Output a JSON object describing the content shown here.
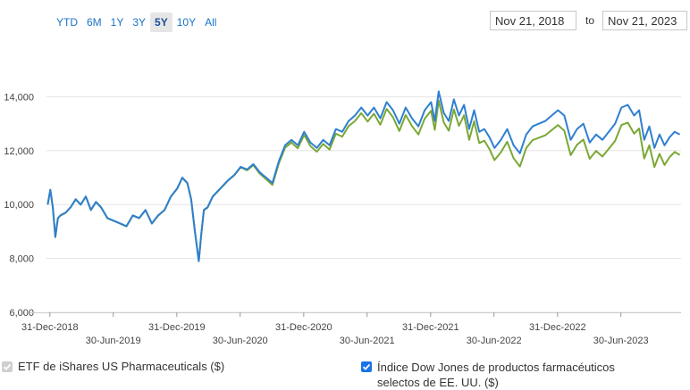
{
  "range_buttons": [
    "YTD",
    "6M",
    "1Y",
    "3Y",
    "5Y",
    "10Y",
    "All"
  ],
  "active_range": "5Y",
  "date_from": "Nov 21, 2018",
  "date_sep": "to",
  "date_to": "Nov 21, 2023",
  "legend": {
    "etf_label": "ETF de iShares US Pharmaceuticals ($)",
    "index_label_line1": "Índice Dow Jones de productos farmacéuticos",
    "index_label_line2": "selectos de EE. UU. ($)"
  },
  "colors": {
    "etf": "#2f7fd1",
    "index": "#7aa834",
    "grid": "#e3e3e3",
    "axis": "#cccccc"
  },
  "chart_data": {
    "type": "line",
    "title": "",
    "xlabel": "",
    "ylabel": "",
    "ylim": [
      6000,
      16000
    ],
    "yticks": [
      6000,
      8000,
      10000,
      12000,
      14000
    ],
    "ytick_labels": [
      "6,000",
      "8,000",
      "10,000",
      "12,000",
      "14,000"
    ],
    "xlim_years": [
      2018.97,
      2023.97
    ],
    "xticks_upper": [
      {
        "t": 2018.997,
        "label": "31-Dec-2018"
      },
      {
        "t": 2019.997,
        "label": "31-Dec-2019"
      },
      {
        "t": 2020.997,
        "label": "31-Dec-2020"
      },
      {
        "t": 2021.997,
        "label": "31-Dec-2021"
      },
      {
        "t": 2022.997,
        "label": "31-Dec-2022"
      }
    ],
    "xticks_lower": [
      {
        "t": 2019.496,
        "label": "30-Jun-2019"
      },
      {
        "t": 2020.496,
        "label": "30-Jun-2020"
      },
      {
        "t": 2021.496,
        "label": "30-Jun-2021"
      },
      {
        "t": 2022.496,
        "label": "30-Jun-2022"
      },
      {
        "t": 2023.496,
        "label": "30-Jun-2023"
      }
    ],
    "series": [
      {
        "name": "ETF de iShares US Pharmaceuticals ($)",
        "x": [
          2018.98,
          2019.0,
          2019.02,
          2019.04,
          2019.06,
          2019.08,
          2019.12,
          2019.16,
          2019.2,
          2019.24,
          2019.28,
          2019.32,
          2019.36,
          2019.4,
          2019.45,
          2019.5,
          2019.55,
          2019.6,
          2019.65,
          2019.7,
          2019.75,
          2019.8,
          2019.85,
          2019.9,
          2019.95,
          2020.0,
          2020.04,
          2020.08,
          2020.11,
          2020.14,
          2020.17,
          2020.19,
          2020.21,
          2020.24,
          2020.28,
          2020.32,
          2020.36,
          2020.4,
          2020.45,
          2020.5,
          2020.55,
          2020.6,
          2020.65,
          2020.7,
          2020.75,
          2020.8,
          2020.85,
          2020.9,
          2020.95,
          2021.0,
          2021.05,
          2021.1,
          2021.15,
          2021.2,
          2021.25,
          2021.3,
          2021.35,
          2021.4,
          2021.45,
          2021.5,
          2021.55,
          2021.6,
          2021.65,
          2021.7,
          2021.75,
          2021.8,
          2021.85,
          2021.9,
          2021.95,
          2022.0,
          2022.03,
          2022.06,
          2022.1,
          2022.14,
          2022.18,
          2022.22,
          2022.26,
          2022.3,
          2022.34,
          2022.38,
          2022.42,
          2022.46,
          2022.5,
          2022.55,
          2022.6,
          2022.65,
          2022.7,
          2022.75,
          2022.8,
          2022.85,
          2022.9,
          2022.95,
          2023.0,
          2023.05,
          2023.1,
          2023.15,
          2023.2,
          2023.25,
          2023.3,
          2023.35,
          2023.4,
          2023.45,
          2023.5,
          2023.55,
          2023.6,
          2023.64,
          2023.68,
          2023.72,
          2023.76,
          2023.8,
          2023.84,
          2023.88,
          2023.92,
          2023.96
        ],
        "y": [
          10000,
          10550,
          9900,
          8800,
          9500,
          9600,
          9700,
          9900,
          10200,
          10000,
          10300,
          9800,
          10100,
          9900,
          9500,
          9400,
          9300,
          9200,
          9600,
          9500,
          9800,
          9300,
          9600,
          9800,
          10300,
          10600,
          11000,
          10800,
          10200,
          9000,
          7900,
          8900,
          9800,
          9900,
          10300,
          10500,
          10700,
          10900,
          11100,
          11400,
          11300,
          11500,
          11200,
          11000,
          10800,
          11600,
          12200,
          12400,
          12200,
          12700,
          12300,
          12100,
          12400,
          12200,
          12800,
          12700,
          13100,
          13300,
          13600,
          13300,
          13600,
          13200,
          13800,
          13500,
          13000,
          13600,
          13200,
          12900,
          13500,
          13800,
          13100,
          14200,
          13400,
          13100,
          13900,
          13300,
          13700,
          12800,
          13500,
          12700,
          12800,
          12500,
          12100,
          12400,
          12800,
          12200,
          11900,
          12600,
          12900,
          13000,
          13100,
          13300,
          13500,
          13300,
          12400,
          12800,
          13000,
          12300,
          12600,
          12400,
          12700,
          13000,
          13600,
          13700,
          13300,
          13500,
          12400,
          12900,
          12100,
          12600,
          12200,
          12500,
          12700,
          12600
        ]
      },
      {
        "name": "Índice Dow Jones de productos farmacéuticos selectos de EE. UU. ($)",
        "x": [
          2018.98,
          2019.0,
          2019.02,
          2019.04,
          2019.06,
          2019.08,
          2019.12,
          2019.16,
          2019.2,
          2019.24,
          2019.28,
          2019.32,
          2019.36,
          2019.4,
          2019.45,
          2019.5,
          2019.55,
          2019.6,
          2019.65,
          2019.7,
          2019.75,
          2019.8,
          2019.85,
          2019.9,
          2019.95,
          2020.0,
          2020.04,
          2020.08,
          2020.11,
          2020.14,
          2020.17,
          2020.19,
          2020.21,
          2020.24,
          2020.28,
          2020.32,
          2020.36,
          2020.4,
          2020.45,
          2020.5,
          2020.55,
          2020.6,
          2020.65,
          2020.7,
          2020.75,
          2020.8,
          2020.85,
          2020.9,
          2020.95,
          2021.0,
          2021.05,
          2021.1,
          2021.15,
          2021.2,
          2021.25,
          2021.3,
          2021.35,
          2021.4,
          2021.45,
          2021.5,
          2021.55,
          2021.6,
          2021.65,
          2021.7,
          2021.75,
          2021.8,
          2021.85,
          2021.9,
          2021.95,
          2022.0,
          2022.03,
          2022.06,
          2022.1,
          2022.14,
          2022.18,
          2022.22,
          2022.26,
          2022.3,
          2022.34,
          2022.38,
          2022.42,
          2022.46,
          2022.5,
          2022.55,
          2022.6,
          2022.65,
          2022.7,
          2022.75,
          2022.8,
          2022.85,
          2022.9,
          2022.95,
          2023.0,
          2023.05,
          2023.1,
          2023.15,
          2023.2,
          2023.25,
          2023.3,
          2023.35,
          2023.4,
          2023.45,
          2023.5,
          2023.55,
          2023.6,
          2023.64,
          2023.68,
          2023.72,
          2023.76,
          2023.8,
          2023.84,
          2023.88,
          2023.92,
          2023.96
        ],
        "y": [
          10000,
          10540,
          9890,
          8790,
          9490,
          9590,
          9690,
          9890,
          10190,
          9990,
          10290,
          9790,
          10090,
          9890,
          9490,
          9390,
          9290,
          9190,
          9590,
          9490,
          9790,
          9290,
          9590,
          9790,
          10290,
          10590,
          10990,
          10790,
          10190,
          8990,
          7900,
          8890,
          9790,
          9890,
          10290,
          10490,
          10690,
          10890,
          11090,
          11380,
          11270,
          11460,
          11150,
          10940,
          10730,
          11520,
          12110,
          12300,
          12090,
          12580,
          12170,
          11960,
          12250,
          12040,
          12630,
          12520,
          12910,
          13100,
          13390,
          13080,
          13370,
          12960,
          13550,
          13240,
          12730,
          13320,
          12910,
          12600,
          13190,
          13480,
          12770,
          13860,
          13050,
          12740,
          13530,
          12920,
          13310,
          12400,
          13090,
          12280,
          12370,
          12060,
          11650,
          11940,
          12330,
          11720,
          11410,
          12100,
          12390,
          12480,
          12570,
          12760,
          12950,
          12740,
          11830,
          12220,
          12410,
          11700,
          11990,
          11780,
          12070,
          12360,
          12950,
          13040,
          12630,
          12820,
          11710,
          12200,
          11390,
          11880,
          11470,
          11760,
          11950,
          11840
        ]
      }
    ]
  }
}
